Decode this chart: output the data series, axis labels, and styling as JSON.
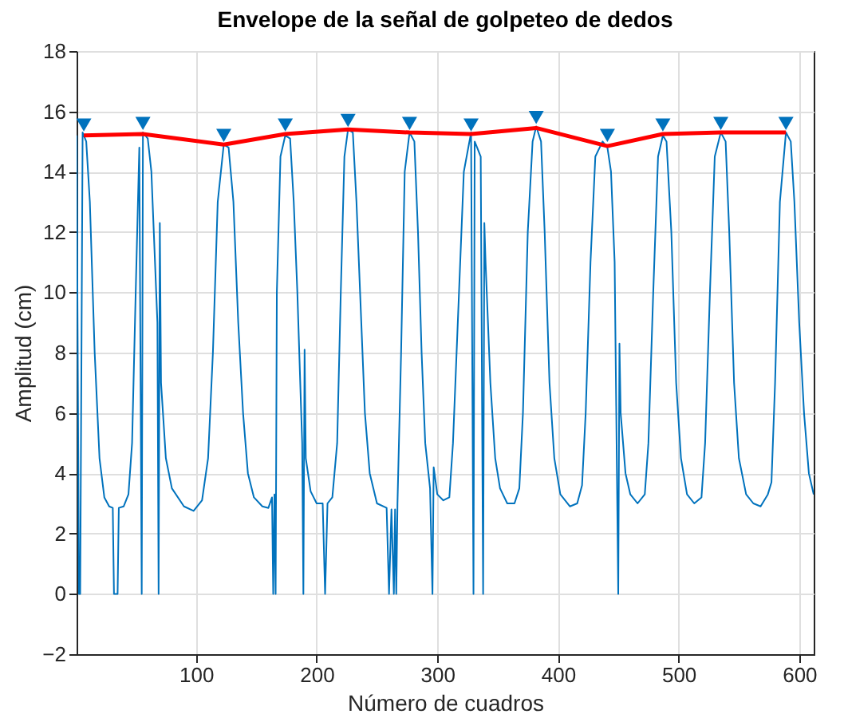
{
  "chart_data": {
    "type": "line",
    "title": "Envelope de la señal de golpeteo de dedos",
    "xlabel": "Número de cuadros",
    "ylabel": "Amplitud (cm)",
    "xlim": [
      1,
      612
    ],
    "ylim": [
      -2,
      18
    ],
    "xticks": [
      100,
      200,
      300,
      400,
      500,
      600
    ],
    "yticks": [
      -2,
      0,
      2,
      4,
      6,
      8,
      10,
      12,
      14,
      16,
      18
    ],
    "grid": true,
    "series": [
      {
        "color": "#0072bd",
        "x": [
          1,
          3,
          4,
          6,
          7,
          9,
          12,
          16,
          20,
          24,
          28,
          31,
          32,
          35,
          36,
          40,
          44,
          47,
          50,
          53,
          55,
          56,
          60,
          63,
          66,
          68,
          69,
          70,
          71,
          75,
          80,
          90,
          98,
          105,
          110,
          114,
          118,
          123,
          127,
          131,
          135,
          139,
          143,
          148,
          155,
          160,
          163,
          164,
          165,
          166,
          167,
          170,
          174,
          178,
          181,
          184,
          188,
          189,
          190,
          191,
          195,
          200,
          205,
          207,
          209,
          213,
          217,
          220,
          223,
          226,
          230,
          233,
          236,
          240,
          244,
          250,
          258,
          260,
          262,
          264,
          265,
          266,
          267,
          270,
          273,
          277,
          281,
          284,
          287,
          290,
          294,
          296,
          297,
          300,
          305,
          310,
          313,
          318,
          322,
          328,
          330,
          331,
          333,
          336,
          338,
          339,
          340,
          344,
          348,
          352,
          358,
          364,
          368,
          371,
          375,
          379,
          382,
          386,
          389,
          393,
          397,
          402,
          410,
          416,
          420,
          423,
          427,
          431,
          437,
          441,
          444,
          447,
          450,
          451,
          452,
          456,
          460,
          466,
          472,
          475,
          479,
          483,
          487,
          490,
          494,
          498,
          502,
          507,
          513,
          519,
          522,
          526,
          530,
          535,
          539,
          542,
          546,
          550,
          556,
          562,
          568,
          574,
          577,
          580,
          584,
          589,
          593,
          596,
          600,
          604,
          608,
          612
        ],
        "values": [
          15.2,
          0,
          0,
          15.3,
          15.2,
          15,
          13,
          8,
          4.5,
          3.2,
          2.9,
          2.85,
          0,
          0,
          2.85,
          2.9,
          3.3,
          5,
          10,
          14.8,
          0,
          15.3,
          15.1,
          14,
          11,
          9,
          0,
          12.3,
          7,
          4.5,
          3.5,
          2.9,
          2.75,
          3.1,
          4.5,
          8,
          13,
          14.9,
          14.8,
          13,
          9,
          6,
          4,
          3.2,
          2.9,
          2.85,
          3.2,
          0,
          3.3,
          0,
          10,
          14.5,
          15.2,
          15.1,
          13,
          10,
          5,
          0,
          8.1,
          4.5,
          3.4,
          3,
          3,
          0,
          3,
          3.2,
          5,
          10,
          14.5,
          15.4,
          15.3,
          13,
          10,
          6,
          4,
          3,
          2.85,
          0,
          2.8,
          0,
          2.8,
          0,
          3,
          8,
          14,
          15.3,
          15,
          12,
          8,
          5,
          3.5,
          0,
          4.2,
          3.3,
          3.1,
          3.2,
          5,
          10,
          14,
          15.3,
          0,
          15,
          14.8,
          14.5,
          0,
          12.3,
          11,
          7,
          4.5,
          3.5,
          3,
          3,
          3.5,
          6,
          12,
          15,
          15.5,
          15,
          12,
          7,
          4.5,
          3.3,
          2.9,
          3,
          3.6,
          6,
          11,
          14.5,
          15,
          14.8,
          14,
          11,
          0,
          8.3,
          6,
          4,
          3.3,
          3,
          3.3,
          5,
          10,
          14.5,
          15.2,
          15,
          12,
          7,
          4.5,
          3.3,
          3,
          3.2,
          5,
          10,
          14.5,
          15.3,
          15,
          12,
          7,
          4.5,
          3.3,
          3,
          2.9,
          3.3,
          3.7,
          7,
          13,
          15.3,
          15,
          13,
          9,
          6,
          4,
          3.3
        ]
      },
      {
        "color": "#ff0000",
        "x": [
          7,
          56,
          123,
          174,
          226,
          277,
          328,
          382,
          441,
          487,
          535,
          589
        ],
        "values": [
          15.2,
          15.25,
          14.9,
          15.25,
          15.4,
          15.3,
          15.25,
          15.45,
          14.85,
          15.25,
          15.3,
          15.3
        ]
      },
      {
        "type": "scatter",
        "marker": "triangle",
        "color": "#0072bd",
        "x": [
          7,
          56,
          123,
          174,
          226,
          277,
          328,
          382,
          441,
          487,
          535,
          589
        ],
        "values": [
          15.55,
          15.6,
          15.2,
          15.55,
          15.7,
          15.6,
          15.55,
          15.8,
          15.2,
          15.55,
          15.6,
          15.6
        ]
      }
    ]
  }
}
